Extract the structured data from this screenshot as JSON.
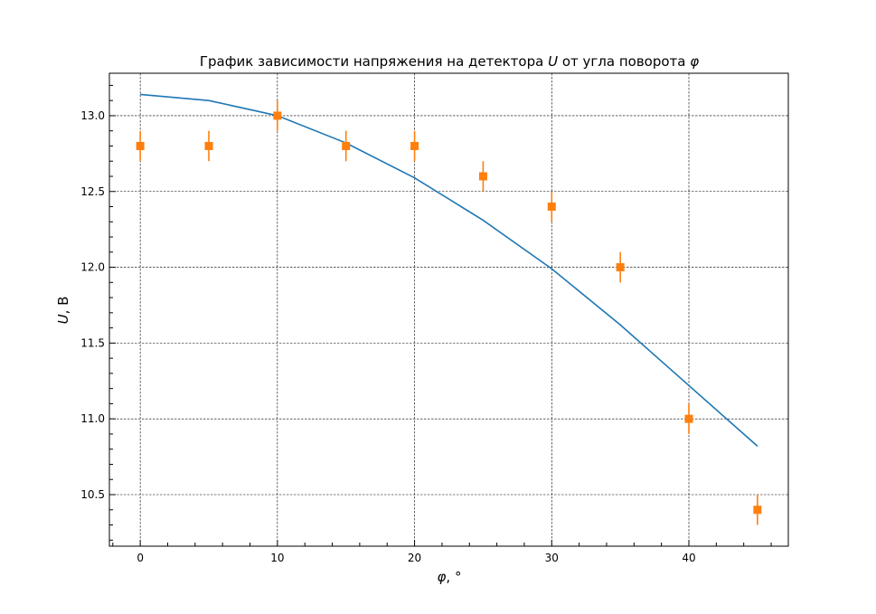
{
  "chart_data": {
    "type": "line",
    "title": {
      "prefix": "График зависимости напряжения на детектора ",
      "var1": "U",
      "middle": " от угла поворота ",
      "var2": "φ"
    },
    "xlabel": {
      "var": "φ",
      "rest": ", °"
    },
    "ylabel": {
      "var": "U",
      "rest": ", В"
    },
    "xlim": [
      -2.25,
      47.25
    ],
    "ylim": [
      10.16,
      13.28
    ],
    "x_ticks": [
      0,
      10,
      20,
      30,
      40
    ],
    "x_tick_labels": [
      "0",
      "10",
      "20",
      "30",
      "40"
    ],
    "y_ticks": [
      10.5,
      11.0,
      11.5,
      12.0,
      12.5,
      13.0
    ],
    "y_tick_labels": [
      "10.5",
      "11.0",
      "11.5",
      "12.0",
      "12.5",
      "13.0"
    ],
    "grid": true,
    "series": [
      {
        "kind": "line",
        "color": "#1f77b4",
        "x": [
          0,
          5,
          10,
          15,
          20,
          25,
          30,
          35,
          40,
          45
        ],
        "y": [
          13.14,
          13.1,
          13.0,
          12.82,
          12.59,
          12.31,
          11.99,
          11.62,
          11.22,
          10.82
        ]
      },
      {
        "kind": "errorbar",
        "color": "#ff7f0e",
        "marker": "square",
        "x": [
          0,
          5,
          10,
          15,
          20,
          25,
          30,
          35,
          40,
          45
        ],
        "y": [
          12.8,
          12.8,
          13.0,
          12.8,
          12.8,
          12.6,
          12.4,
          12.0,
          11.0,
          10.4
        ],
        "yerr": [
          0.1,
          0.1,
          0.1,
          0.1,
          0.1,
          0.1,
          0.1,
          0.1,
          0.1,
          0.1
        ]
      }
    ]
  }
}
